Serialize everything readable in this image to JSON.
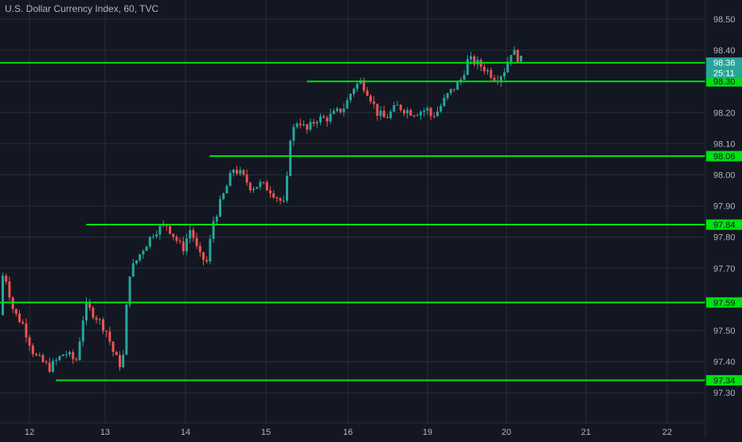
{
  "header": {
    "title": "U.S. Dollar Currency Index, 60, TVC"
  },
  "colors": {
    "background": "#131722",
    "grid": "#2a2e39",
    "axis_text": "#b2b5be",
    "up": "#26a69a",
    "down": "#ef5350",
    "level_line": "#00e013",
    "level_label_bg": "#00e013",
    "price_label_bg": "#26a69a"
  },
  "chart_data": {
    "type": "candlestick",
    "title": "U.S. Dollar Currency Index, 60, TVC",
    "xlabel": "",
    "ylabel": "",
    "ylim": [
      97.24,
      98.55
    ],
    "grid": true,
    "y_ticks": [
      "98.50",
      "98.40",
      "98.30",
      "98.20",
      "98.10",
      "98.00",
      "97.90",
      "97.80",
      "97.70",
      "97.50",
      "97.40",
      "97.30"
    ],
    "x_ticks": [
      "12",
      "13",
      "14",
      "15",
      "16",
      "19",
      "20",
      "21",
      "22"
    ],
    "current_price": {
      "value": 98.36,
      "label": "98.36",
      "countdown": "25:11"
    },
    "horizontal_levels": [
      {
        "value": 98.36,
        "label": "98.36",
        "start_day": 11.0
      },
      {
        "value": 98.3,
        "label": "98.30",
        "start_day": 15.5
      },
      {
        "value": 98.06,
        "label": "98.06",
        "start_day": 14.3
      },
      {
        "value": 97.84,
        "label": "97.84",
        "start_day": 12.75
      },
      {
        "value": 97.59,
        "label": "97.59",
        "start_day": 11.0
      },
      {
        "value": 97.34,
        "label": "97.34",
        "start_day": 12.35
      }
    ],
    "close_path": [
      [
        11.0,
        97.55
      ],
      [
        11.1,
        97.52
      ],
      [
        11.35,
        97.5
      ],
      [
        11.55,
        97.48
      ],
      [
        11.65,
        97.7
      ],
      [
        11.78,
        97.56
      ],
      [
        11.9,
        97.52
      ],
      [
        12.05,
        97.42
      ],
      [
        12.25,
        97.38
      ],
      [
        12.45,
        97.43
      ],
      [
        12.6,
        97.4
      ],
      [
        12.72,
        97.58
      ],
      [
        12.85,
        97.55
      ],
      [
        13.0,
        97.5
      ],
      [
        13.1,
        97.42
      ],
      [
        13.2,
        97.38
      ],
      [
        13.28,
        97.68
      ],
      [
        13.45,
        97.76
      ],
      [
        13.6,
        97.82
      ],
      [
        13.75,
        97.84
      ],
      [
        13.85,
        97.8
      ],
      [
        13.95,
        97.76
      ],
      [
        14.05,
        97.83
      ],
      [
        14.15,
        97.74
      ],
      [
        14.25,
        97.72
      ],
      [
        14.33,
        97.85
      ],
      [
        14.48,
        97.95
      ],
      [
        14.58,
        98.02
      ],
      [
        14.68,
        98.0
      ],
      [
        14.8,
        97.96
      ],
      [
        14.92,
        97.97
      ],
      [
        15.05,
        97.95
      ],
      [
        15.15,
        97.92
      ],
      [
        15.22,
        97.9
      ],
      [
        15.28,
        98.12
      ],
      [
        15.38,
        98.18
      ],
      [
        15.48,
        98.14
      ],
      [
        15.6,
        98.18
      ],
      [
        15.72,
        98.18
      ],
      [
        15.85,
        98.2
      ],
      [
        15.95,
        98.22
      ],
      [
        16.05,
        98.28
      ],
      [
        16.15,
        98.3
      ],
      [
        16.25,
        98.26
      ],
      [
        16.35,
        98.2
      ],
      [
        16.45,
        98.18
      ],
      [
        16.6,
        98.22
      ],
      [
        16.8,
        98.2
      ],
      [
        17.0,
        98.21
      ],
      [
        18.8,
        98.22
      ],
      [
        18.95,
        98.18
      ],
      [
        19.1,
        98.2
      ],
      [
        19.25,
        98.26
      ],
      [
        19.4,
        98.3
      ],
      [
        19.5,
        98.37
      ],
      [
        19.6,
        98.36
      ],
      [
        19.72,
        98.34
      ],
      [
        19.85,
        98.31
      ],
      [
        19.95,
        98.33
      ],
      [
        20.05,
        98.4
      ],
      [
        20.12,
        98.38
      ],
      [
        20.2,
        98.36
      ]
    ]
  }
}
